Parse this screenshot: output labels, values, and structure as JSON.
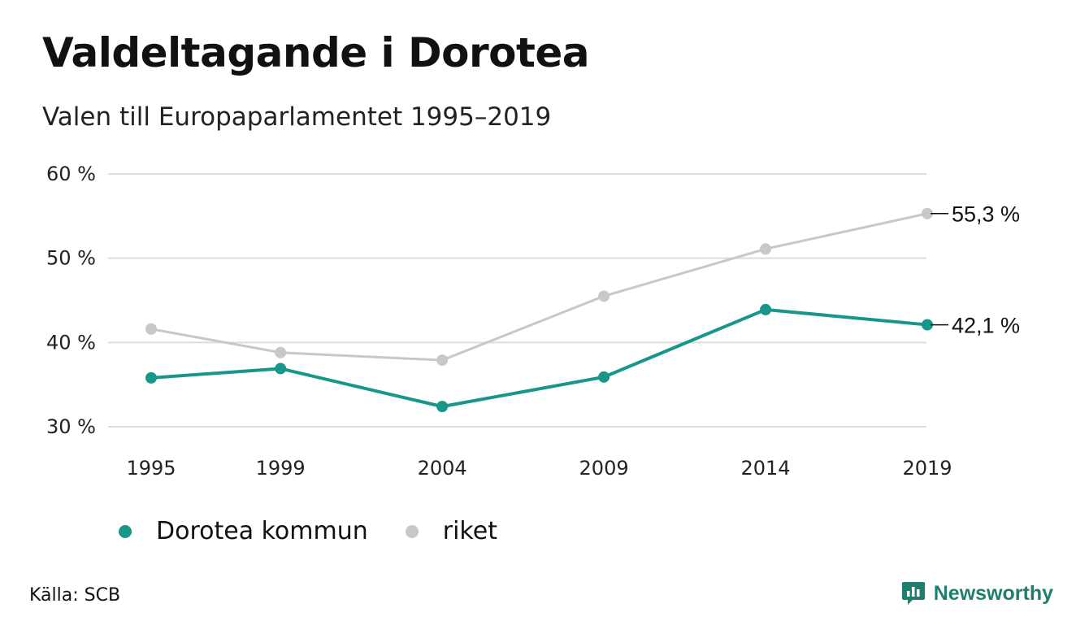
{
  "title": "Valdeltagande i Dorotea",
  "subtitle": "Valen till Europaparlamentet 1995–2019",
  "source": "Källa: SCB",
  "brand": "Newsworthy",
  "colors": {
    "dorotea": "#17968a",
    "riket": "#c8c8c8",
    "grid": "#dddddd",
    "brand": "#1f7f6e"
  },
  "legend": [
    {
      "label": "Dorotea kommun",
      "color": "#17968a"
    },
    {
      "label": "riket",
      "color": "#c8c8c8"
    }
  ],
  "chart_data": {
    "type": "line",
    "title": "Valdeltagande i Dorotea",
    "subtitle": "Valen till Europaparlamentet 1995–2019",
    "x": [
      1995,
      1999,
      2004,
      2009,
      2014,
      2019
    ],
    "x_tick_labels": [
      "1995",
      "1999",
      "2004",
      "2009",
      "2014",
      "2019"
    ],
    "ylim": [
      30,
      60
    ],
    "y_ticks": [
      60,
      50,
      40,
      30
    ],
    "y_tick_labels": [
      "60 %",
      "50 %",
      "40 %",
      "30 %"
    ],
    "grid": true,
    "legend_position": "bottom-left",
    "series": [
      {
        "name": "Dorotea kommun",
        "color": "#17968a",
        "values": [
          35.8,
          36.9,
          32.4,
          35.9,
          43.9,
          42.1
        ],
        "end_label": "42,1 %"
      },
      {
        "name": "riket",
        "color": "#c8c8c8",
        "values": [
          41.6,
          38.8,
          37.9,
          45.5,
          51.1,
          55.3
        ],
        "end_label": "55,3 %"
      }
    ]
  }
}
